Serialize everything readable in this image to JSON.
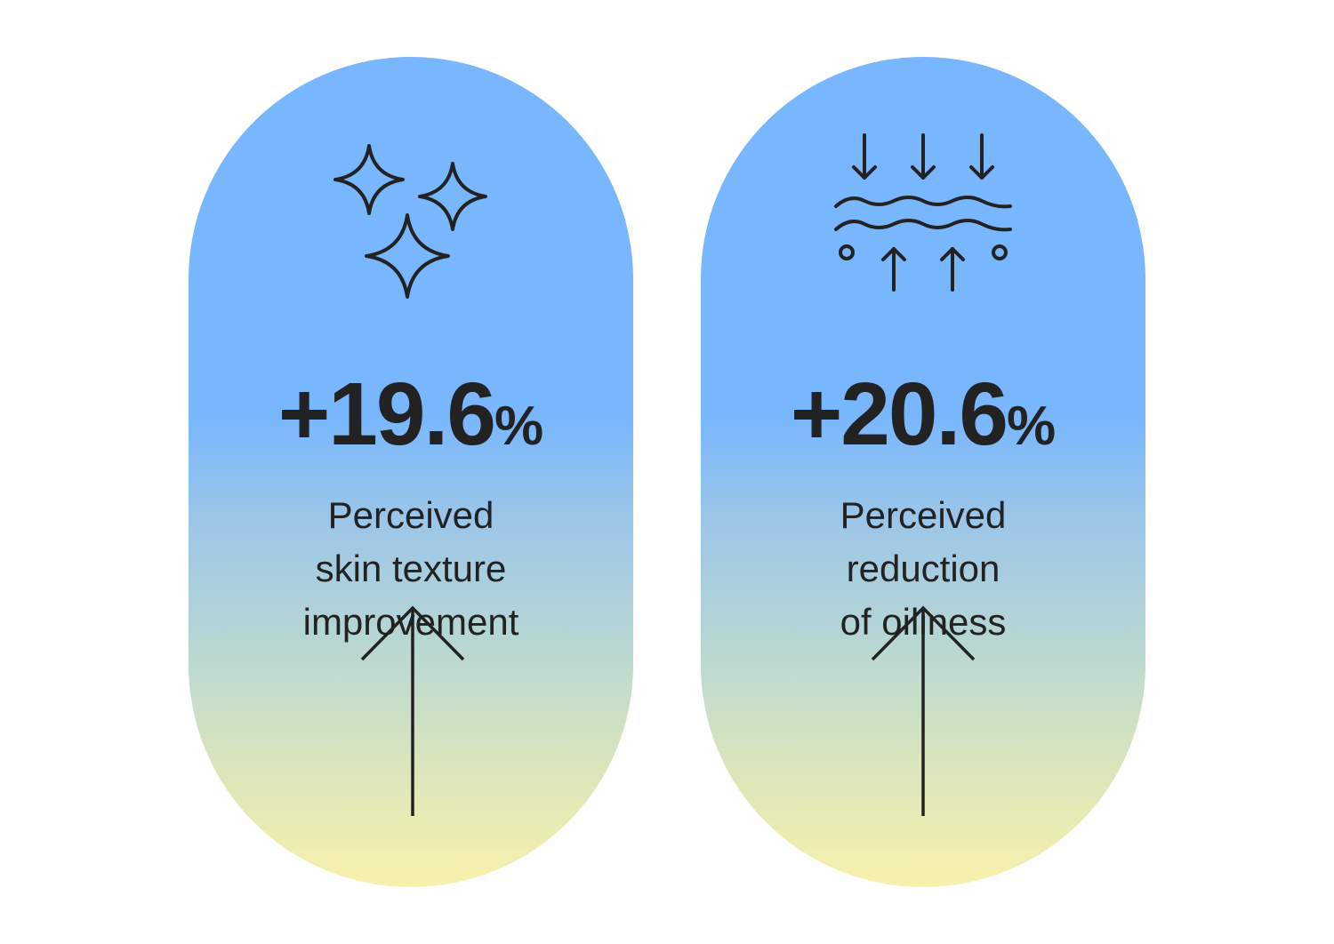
{
  "cards": [
    {
      "icon": "sparkles-icon",
      "value": "+19.6",
      "unit": "%",
      "label_lines": [
        "Perceived",
        "skin texture",
        "improvement"
      ],
      "direction": "up-arrow-icon"
    },
    {
      "icon": "oil-absorption-icon",
      "value": "+20.6",
      "unit": "%",
      "label_lines": [
        "Perceived",
        "reduction",
        "of oiliness"
      ],
      "direction": "up-arrow-icon"
    }
  ],
  "colors": {
    "gradient_top": "#78b6fd",
    "gradient_bottom": "#f8f1ab",
    "text": "#222222"
  }
}
